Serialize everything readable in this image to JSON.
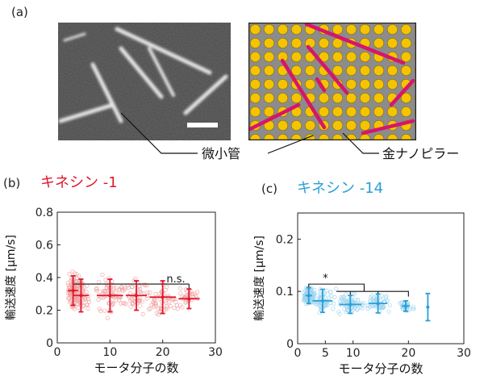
{
  "figure": {
    "panel_a": {
      "label": "(a)",
      "annotations": {
        "microtubule": "微小管",
        "gold_pillar": "金ナノピラー"
      }
    },
    "panel_b": {
      "label": "(b)",
      "title": "キネシン -1",
      "title_color": "#e0182d",
      "significance": "n.s."
    },
    "panel_c": {
      "label": "(c)",
      "title": "キネシン -14",
      "title_color": "#2a9fd8",
      "significance": "*"
    }
  },
  "chart_data": [
    {
      "panel": "b",
      "type": "scatter",
      "title": "キネシン -1",
      "xlabel": "モータ分子の数",
      "ylabel": "輸送速度  [μm/s]",
      "xlim": [
        0,
        30
      ],
      "ylim": [
        0,
        0.8
      ],
      "xticks": [
        0,
        10,
        20,
        30
      ],
      "yticks": [
        0,
        0.2,
        0.4,
        0.6,
        0.8
      ],
      "color": "#e0182d",
      "x_ticks": [
        "0",
        "10",
        "20",
        "30"
      ],
      "y_ticks": [
        "0",
        "0.2",
        "0.4",
        "0.6",
        "0.8"
      ],
      "series": [
        {
          "type": "mean_with_error",
          "points": [
            {
              "x": 3,
              "y": 0.32,
              "xerr": 1.0,
              "yerr": 0.09
            },
            {
              "x": 4.5,
              "y": 0.29,
              "xerr": 1.5,
              "yerr": 0.1
            },
            {
              "x": 10,
              "y": 0.29,
              "xerr": 2.5,
              "yerr": 0.1
            },
            {
              "x": 15,
              "y": 0.29,
              "xerr": 2.0,
              "yerr": 0.09
            },
            {
              "x": 20,
              "y": 0.28,
              "xerr": 2.5,
              "yerr": 0.1
            },
            {
              "x": 25,
              "y": 0.27,
              "xerr": 2.0,
              "yerr": 0.06
            }
          ]
        }
      ],
      "raw_scatter": {
        "x_range": [
          2,
          27
        ],
        "y_range": [
          0.1,
          0.68
        ],
        "count": 380,
        "seed": 7
      }
    },
    {
      "panel": "c",
      "type": "scatter",
      "title": "キネシン -14",
      "xlabel": "モータ分子の数",
      "ylabel": "輸送速度  [μm/s]",
      "xlim": [
        0,
        30
      ],
      "ylim": [
        0,
        0.25
      ],
      "xticks": [
        0,
        5,
        10,
        20,
        30
      ],
      "yticks": [
        0,
        0.1,
        0.2
      ],
      "color": "#2a9fd8",
      "x_ticks": [
        "0",
        "5",
        "10",
        "20",
        "30"
      ],
      "y_ticks": [
        "0",
        "0.1",
        "0.2"
      ],
      "series": [
        {
          "type": "mean_with_error",
          "points": [
            {
              "x": 2,
              "y": 0.092,
              "xerr": 0.6,
              "yerr": 0.015
            },
            {
              "x": 4.5,
              "y": 0.082,
              "xerr": 1.8,
              "yerr": 0.022
            },
            {
              "x": 9.5,
              "y": 0.075,
              "xerr": 2.0,
              "yerr": 0.017
            },
            {
              "x": 14.5,
              "y": 0.077,
              "xerr": 1.7,
              "yerr": 0.018
            },
            {
              "x": 19.5,
              "y": 0.072,
              "xerr": 0.7,
              "yerr": 0.01
            },
            {
              "x": 23.5,
              "y": 0.07,
              "xerr": 0,
              "yerr": 0.026
            }
          ]
        }
      ],
      "raw_scatter": {
        "x_range": [
          1,
          21
        ],
        "y_range": [
          0.02,
          0.16
        ],
        "count": 420,
        "seed": 11
      }
    }
  ]
}
